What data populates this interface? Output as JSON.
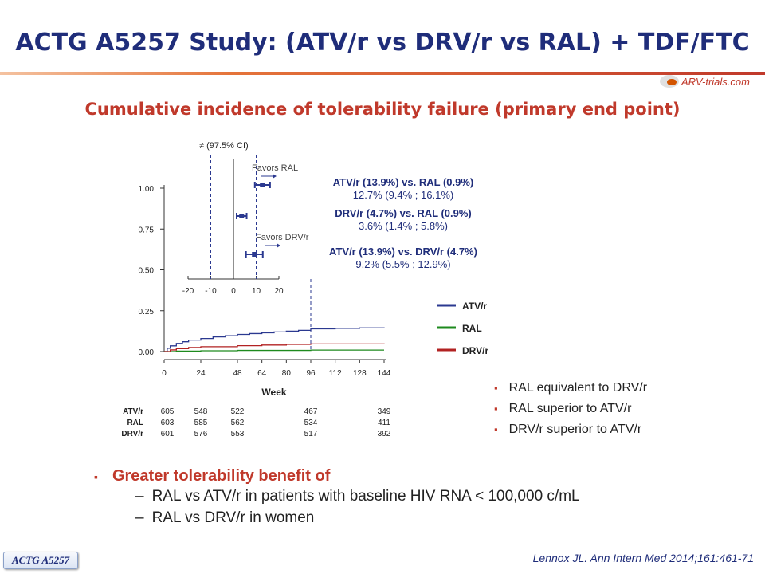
{
  "title": "ACTG A5257 Study: (ATV/r vs DRV/r vs RAL) + TDF/FTC",
  "logo_text": "ARV-trials.com",
  "subtitle": "Cumulative incidence of tolerability failure (primary end point)",
  "conclusions": [
    "RAL equivalent to DRV/r",
    "RAL superior to ATV/r",
    "DRV/r superior to ATV/r"
  ],
  "key_point": {
    "heading": "Greater tolerability benefit of",
    "subpoints": [
      "RAL vs ATV/r in patients with baseline HIV RNA < 100,000 c/mL",
      "RAL vs DRV/r in women"
    ]
  },
  "reference": "Lennox JL. Ann Intern Med 2014;161:461-71",
  "study_tag": "ACTG A5257",
  "colors": {
    "title": "#1f2d7a",
    "accent": "#c0392b",
    "atv": "#2b3990",
    "ral": "#1e8a1e",
    "drv": "#b22222"
  },
  "chart_data": {
    "type": "line",
    "xlabel": "Week",
    "ylabel": "",
    "x_ticks": [
      0,
      24,
      48,
      64,
      80,
      96,
      112,
      128,
      144
    ],
    "y_ticks": [
      "0.00",
      "0.25",
      "0.50",
      "0.75",
      "1.00"
    ],
    "xlim": [
      0,
      144
    ],
    "ylim": [
      0,
      1.0
    ],
    "reference_week": 96,
    "series": [
      {
        "name": "ATV/r",
        "color": "#2b3990",
        "x": [
          0,
          2,
          4,
          8,
          12,
          16,
          24,
          32,
          40,
          48,
          56,
          64,
          72,
          80,
          88,
          96,
          112,
          128,
          144
        ],
        "y": [
          0,
          0.02,
          0.035,
          0.05,
          0.06,
          0.07,
          0.08,
          0.09,
          0.097,
          0.105,
          0.11,
          0.115,
          0.12,
          0.125,
          0.13,
          0.139,
          0.142,
          0.145,
          0.148
        ]
      },
      {
        "name": "RAL",
        "color": "#1e8a1e",
        "x": [
          0,
          8,
          24,
          48,
          96,
          144
        ],
        "y": [
          0,
          0.003,
          0.005,
          0.007,
          0.009,
          0.009
        ]
      },
      {
        "name": "DRV/r",
        "color": "#b22222",
        "x": [
          0,
          4,
          8,
          16,
          24,
          48,
          64,
          80,
          96,
          144
        ],
        "y": [
          0,
          0.01,
          0.018,
          0.025,
          0.03,
          0.036,
          0.04,
          0.044,
          0.047,
          0.05
        ]
      }
    ],
    "at_risk": {
      "weeks": [
        0,
        24,
        48,
        96,
        144
      ],
      "rows": [
        {
          "label": "ATV/r",
          "values": [
            "605",
            "548",
            "522",
            "467",
            "349"
          ]
        },
        {
          "label": "RAL",
          "values": [
            "603",
            "585",
            "562",
            "534",
            "411"
          ]
        },
        {
          "label": "DRV/r",
          "values": [
            "601",
            "576",
            "553",
            "517",
            "392"
          ]
        }
      ]
    },
    "forest_inset": {
      "ci_label": "≠ (97.5% CI)",
      "x_ticks": [
        "-20",
        "-10",
        "0",
        "10",
        "20"
      ],
      "xlim": [
        -20,
        20
      ],
      "margin_lines": [
        -10,
        10
      ],
      "favors_labels": [
        "Favors RAL",
        "Favors DRV/r"
      ],
      "comparisons": [
        {
          "label": "ATV/r (13.9%) vs. RAL (0.9%)",
          "estimate_text": "12.7% (9.4% ; 16.1%)",
          "est": 12.7,
          "lo": 9.4,
          "hi": 16.1
        },
        {
          "label": "DRV/r (4.7%) vs. RAL (0.9%)",
          "estimate_text": "3.6% (1.4% ; 5.8%)",
          "est": 3.6,
          "lo": 1.4,
          "hi": 5.8
        },
        {
          "label": "ATV/r (13.9%) vs. DRV/r (4.7%)",
          "estimate_text": "9.2% (5.5% ; 12.9%)",
          "est": 9.2,
          "lo": 5.5,
          "hi": 12.9
        }
      ]
    }
  }
}
